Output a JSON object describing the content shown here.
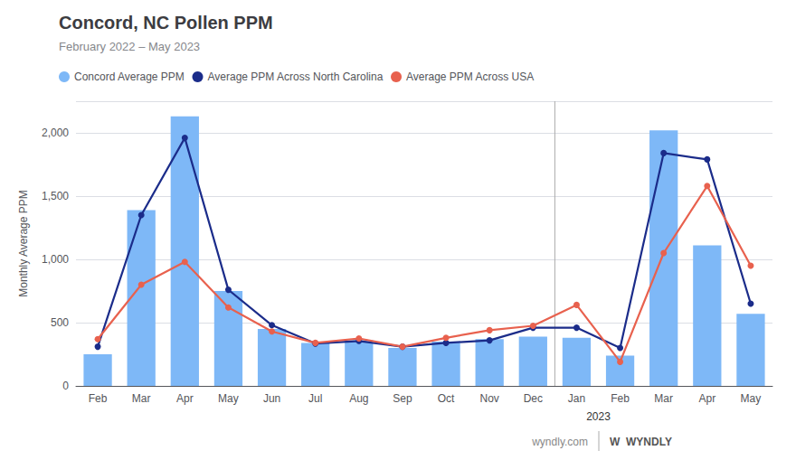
{
  "chart_data": {
    "type": "bar",
    "title": "Concord, NC Pollen PPM",
    "subtitle": "February 2022 – May 2023",
    "ylabel": "Monthly Average PPM",
    "categories": [
      "Feb",
      "Mar",
      "Apr",
      "May",
      "Jun",
      "Jul",
      "Aug",
      "Sep",
      "Oct",
      "Nov",
      "Dec",
      "Jan",
      "Feb",
      "Mar",
      "Apr",
      "May"
    ],
    "series": [
      {
        "name": "Concord Average PPM",
        "type": "bar",
        "color": "#7EB8F7",
        "values": [
          250,
          1390,
          2130,
          750,
          450,
          340,
          360,
          300,
          350,
          370,
          390,
          380,
          240,
          2020,
          1110,
          570
        ]
      },
      {
        "name": "Average PPM Across North Carolina",
        "type": "line",
        "color": "#1B2C8A",
        "marker": "circle",
        "values": [
          310,
          1350,
          1960,
          760,
          480,
          335,
          355,
          310,
          340,
          360,
          460,
          460,
          300,
          1840,
          1790,
          650
        ]
      },
      {
        "name": "Average PPM Across USA",
        "type": "line",
        "color": "#E8614E",
        "marker": "circle",
        "values": [
          370,
          800,
          980,
          620,
          430,
          340,
          375,
          310,
          380,
          440,
          475,
          640,
          190,
          1050,
          1580,
          950
        ]
      }
    ],
    "ylim": [
      0,
      2250
    ],
    "yticks": [
      0,
      500,
      {
        "value": 1000,
        "label": "1,000"
      },
      {
        "value": 1500,
        "label": "1,500"
      },
      {
        "value": 2000,
        "label": "2,000"
      }
    ],
    "grid": true,
    "legend": "top",
    "vlines": [
      10.5
    ],
    "annotations": [
      {
        "text": "2023",
        "x": 11.5
      },
      {
        "text": "wyndly.com"
      },
      {
        "text": "W  WYNDLY"
      }
    ]
  }
}
